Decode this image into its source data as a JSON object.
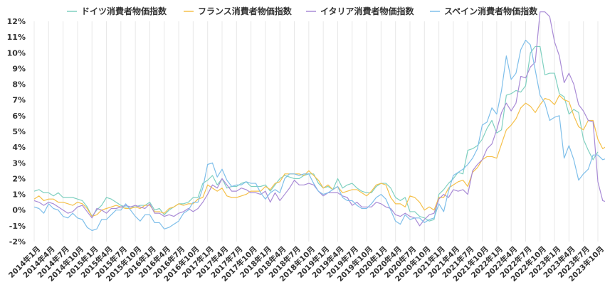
{
  "chart_data": {
    "type": "line",
    "title": "",
    "xlabel": "",
    "ylabel": "",
    "ylim": [
      -2,
      12
    ],
    "yticks": [
      "12%",
      "11%",
      "10%",
      "9%",
      "8%",
      "7%",
      "6%",
      "5%",
      "4%",
      "3%",
      "2%",
      "1%",
      "0%",
      "-1%",
      "-2%"
    ],
    "grid": "vertical",
    "legend": "top",
    "x_start": "2014年1月",
    "x_end": "2023年12月",
    "xtick_labels": [
      "2014年1月",
      "2014年4月",
      "2014年7月",
      "2014年10月",
      "2015年1月",
      "2015年4月",
      "2015年7月",
      "2015年10月",
      "2016年1月",
      "2016年4月",
      "2016年7月",
      "2016年10月",
      "2017年1月",
      "2017年4月",
      "2017年7月",
      "2017年10月",
      "2018年1月",
      "2018年4月",
      "2018年7月",
      "2018年10月",
      "2019年1月",
      "2019年4月",
      "2019年7月",
      "2019年10月",
      "2020年1月",
      "2020年4月",
      "2020年7月",
      "2020年10月",
      "2021年1月",
      "2021年4月",
      "2021年7月",
      "2021年10月",
      "2022年1月",
      "2022年4月",
      "2022年7月",
      "2022年10月",
      "2023年1月",
      "2023年4月",
      "2023年7月",
      "2023年10月"
    ],
    "series": [
      {
        "name": "ドイツ消費者物価指数",
        "color": "#7fd0c0",
        "values": [
          1.2,
          1.3,
          1.1,
          1.1,
          0.9,
          1.1,
          0.8,
          0.8,
          0.8,
          0.7,
          0.6,
          0.2,
          -0.4,
          0.0,
          0.3,
          0.8,
          0.7,
          0.5,
          0.3,
          0.2,
          0.2,
          0.2,
          0.3,
          0.3,
          0.5,
          0.0,
          0.1,
          -0.3,
          0.0,
          0.2,
          0.4,
          0.4,
          0.5,
          0.8,
          0.8,
          1.7,
          1.9,
          2.2,
          1.6,
          2.0,
          1.4,
          1.5,
          1.5,
          1.7,
          1.8,
          1.5,
          1.5,
          1.5,
          1.6,
          1.2,
          1.6,
          2.0,
          2.2,
          2.1,
          2.0,
          2.0,
          2.2,
          2.3,
          2.3,
          1.7,
          1.4,
          1.5,
          1.3,
          2.0,
          1.4,
          1.6,
          1.7,
          1.4,
          1.2,
          1.1,
          1.1,
          1.5,
          1.7,
          1.7,
          1.4,
          0.8,
          0.6,
          0.8,
          -0.1,
          -0.1,
          -0.4,
          -0.5,
          -0.7,
          -0.6,
          1.0,
          1.3,
          1.7,
          2.0,
          2.4,
          2.3,
          3.8,
          3.9,
          4.1,
          4.5,
          5.2,
          5.7,
          4.9,
          5.1,
          7.3,
          7.4,
          7.6,
          7.5,
          7.9,
          10.0,
          10.4,
          10.4,
          8.6,
          8.7,
          8.7,
          7.4,
          7.2,
          6.1,
          6.4,
          6.2,
          4.5,
          3.8,
          3.2,
          3.7
        ]
      },
      {
        "name": "フランス消費者物価指数",
        "color": "#f5c04a",
        "values": [
          0.7,
          0.9,
          0.6,
          0.7,
          0.7,
          0.5,
          0.5,
          0.4,
          0.3,
          0.5,
          0.4,
          0.1,
          -0.4,
          -0.3,
          0.0,
          0.1,
          0.2,
          0.3,
          0.2,
          0.1,
          0.1,
          0.2,
          0.1,
          0.3,
          0.3,
          -0.1,
          -0.1,
          -0.2,
          0.1,
          0.2,
          0.4,
          0.3,
          0.4,
          0.4,
          0.7,
          0.8,
          1.6,
          1.4,
          1.2,
          1.4,
          0.9,
          0.8,
          0.8,
          0.9,
          1.0,
          1.2,
          1.2,
          1.2,
          1.5,
          1.3,
          1.7,
          1.8,
          2.3,
          2.3,
          2.3,
          2.3,
          2.2,
          2.5,
          2.2,
          1.9,
          1.4,
          1.6,
          1.3,
          1.5,
          1.1,
          1.2,
          1.3,
          1.3,
          1.1,
          0.9,
          1.2,
          1.6,
          1.7,
          1.6,
          0.8,
          0.4,
          0.4,
          0.2,
          0.9,
          0.8,
          0.5,
          0.0,
          0.2,
          0.0,
          0.8,
          0.8,
          1.4,
          1.6,
          1.8,
          1.9,
          1.5,
          2.4,
          2.7,
          3.2,
          3.4,
          3.4,
          3.3,
          4.2,
          5.1,
          5.4,
          5.8,
          6.5,
          6.8,
          6.6,
          6.2,
          6.7,
          7.1,
          7.0,
          6.7,
          7.3,
          7.0,
          6.9,
          6.0,
          5.3,
          5.1,
          5.7,
          5.7,
          4.5,
          3.9,
          4.1
        ]
      },
      {
        "name": "イタリア消費者物価指数",
        "color": "#a98bd6",
        "values": [
          0.6,
          0.5,
          0.3,
          0.5,
          0.4,
          0.2,
          0.0,
          -0.2,
          -0.1,
          0.2,
          0.3,
          -0.1,
          -0.5,
          0.1,
          0.0,
          -0.2,
          0.1,
          0.1,
          0.2,
          0.3,
          0.2,
          0.3,
          0.2,
          0.1,
          0.4,
          -0.2,
          -0.2,
          -0.4,
          -0.3,
          -0.4,
          -0.2,
          -0.1,
          0.1,
          -0.1,
          0.1,
          0.5,
          1.0,
          1.6,
          1.4,
          2.0,
          1.6,
          1.2,
          1.2,
          1.4,
          1.3,
          1.1,
          1.1,
          1.0,
          1.2,
          0.5,
          1.1,
          0.6,
          1.0,
          1.4,
          1.9,
          1.6,
          1.6,
          1.7,
          1.6,
          1.2,
          0.9,
          1.1,
          1.1,
          1.1,
          0.9,
          0.8,
          0.3,
          0.5,
          0.2,
          0.2,
          0.2,
          0.5,
          0.4,
          0.2,
          0.1,
          -0.3,
          -0.4,
          -0.2,
          -0.4,
          -0.5,
          -1.0,
          -0.6,
          -0.3,
          -0.2,
          0.7,
          1.0,
          0.8,
          1.3,
          1.2,
          1.3,
          1.0,
          2.5,
          2.9,
          3.2,
          3.9,
          4.2,
          5.1,
          6.2,
          6.8,
          6.3,
          6.8,
          8.5,
          8.4,
          9.1,
          9.4,
          12.6,
          12.6,
          12.3,
          10.7,
          9.8,
          8.1,
          8.7,
          8.0,
          6.7,
          6.3,
          5.7,
          5.6,
          1.8,
          0.6,
          0.5
        ]
      },
      {
        "name": "スペイン消費者物価指数",
        "color": "#7fbfea",
        "values": [
          0.2,
          0.1,
          -0.2,
          0.4,
          0.1,
          0.0,
          -0.4,
          -0.5,
          -0.2,
          -0.5,
          -0.6,
          -1.1,
          -1.3,
          -1.2,
          -0.6,
          -0.6,
          -0.3,
          0.0,
          0.0,
          0.4,
          0.0,
          -0.4,
          -0.7,
          -0.3,
          -0.3,
          -0.8,
          -0.8,
          -1.2,
          -1.1,
          -0.9,
          -0.7,
          -0.2,
          0.0,
          0.5,
          0.5,
          1.4,
          2.9,
          3.0,
          2.1,
          2.6,
          1.9,
          1.5,
          1.6,
          1.6,
          1.8,
          1.7,
          1.7,
          1.1,
          0.7,
          1.1,
          1.3,
          1.1,
          2.0,
          2.3,
          2.3,
          2.2,
          2.3,
          2.3,
          1.7,
          1.2,
          1.0,
          1.1,
          1.3,
          1.5,
          0.8,
          0.6,
          0.6,
          0.3,
          0.1,
          0.1,
          0.4,
          0.8,
          1.0,
          0.7,
          0.0,
          -0.7,
          -0.9,
          -0.3,
          -0.6,
          -0.5,
          -0.5,
          -0.8,
          -0.6,
          -0.5,
          0.4,
          -0.1,
          1.2,
          2.2,
          2.4,
          2.6,
          2.9,
          3.3,
          3.9,
          5.4,
          5.6,
          6.5,
          6.1,
          7.6,
          9.8,
          8.3,
          8.7,
          10.2,
          10.8,
          10.5,
          8.9,
          7.3,
          6.8,
          5.7,
          5.9,
          6.0,
          3.3,
          4.1,
          3.2,
          1.9,
          2.3,
          2.6,
          3.5,
          3.5,
          3.2,
          3.3
        ]
      }
    ]
  }
}
